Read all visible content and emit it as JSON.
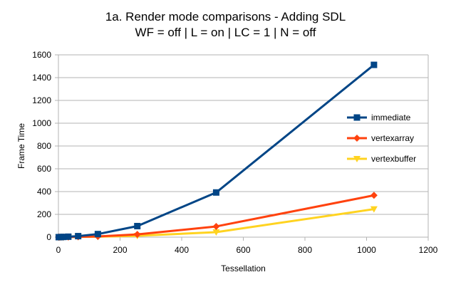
{
  "chart_data": {
    "type": "line",
    "title": "1a. Render mode comparisons - Adding SDL",
    "subtitle": "WF = off | L = on | LC = 1 | N = off",
    "xlabel": "Tessellation",
    "ylabel": "Frame Time",
    "xlim": [
      0,
      1200
    ],
    "ylim": [
      0,
      1600
    ],
    "xticks": [
      0,
      200,
      400,
      600,
      800,
      1000,
      1200
    ],
    "yticks": [
      0,
      200,
      400,
      600,
      800,
      1000,
      1200,
      1400,
      1600
    ],
    "grid": true,
    "legend_position": "right",
    "series": [
      {
        "name": "immediate",
        "color": "#004586",
        "marker": "square",
        "x": [
          1,
          2,
          4,
          8,
          16,
          32,
          64,
          128,
          256,
          512,
          1024
        ],
        "y": [
          0,
          0,
          0,
          1,
          2,
          4,
          9,
          27,
          97,
          392,
          1512
        ]
      },
      {
        "name": "vertexarray",
        "color": "#ff420e",
        "marker": "diamond",
        "x": [
          1,
          2,
          4,
          8,
          16,
          32,
          64,
          128,
          256,
          512,
          1024
        ],
        "y": [
          0,
          0,
          0,
          0,
          1,
          1,
          3,
          6,
          24,
          94,
          367
        ]
      },
      {
        "name": "vertexbuffer",
        "color": "#ffd320",
        "marker": "triangle-down",
        "x": [
          1,
          2,
          4,
          8,
          16,
          32,
          64,
          128,
          256,
          512,
          1024
        ],
        "y": [
          0,
          0,
          0,
          0,
          0,
          1,
          2,
          4,
          12,
          44,
          246
        ]
      }
    ]
  }
}
